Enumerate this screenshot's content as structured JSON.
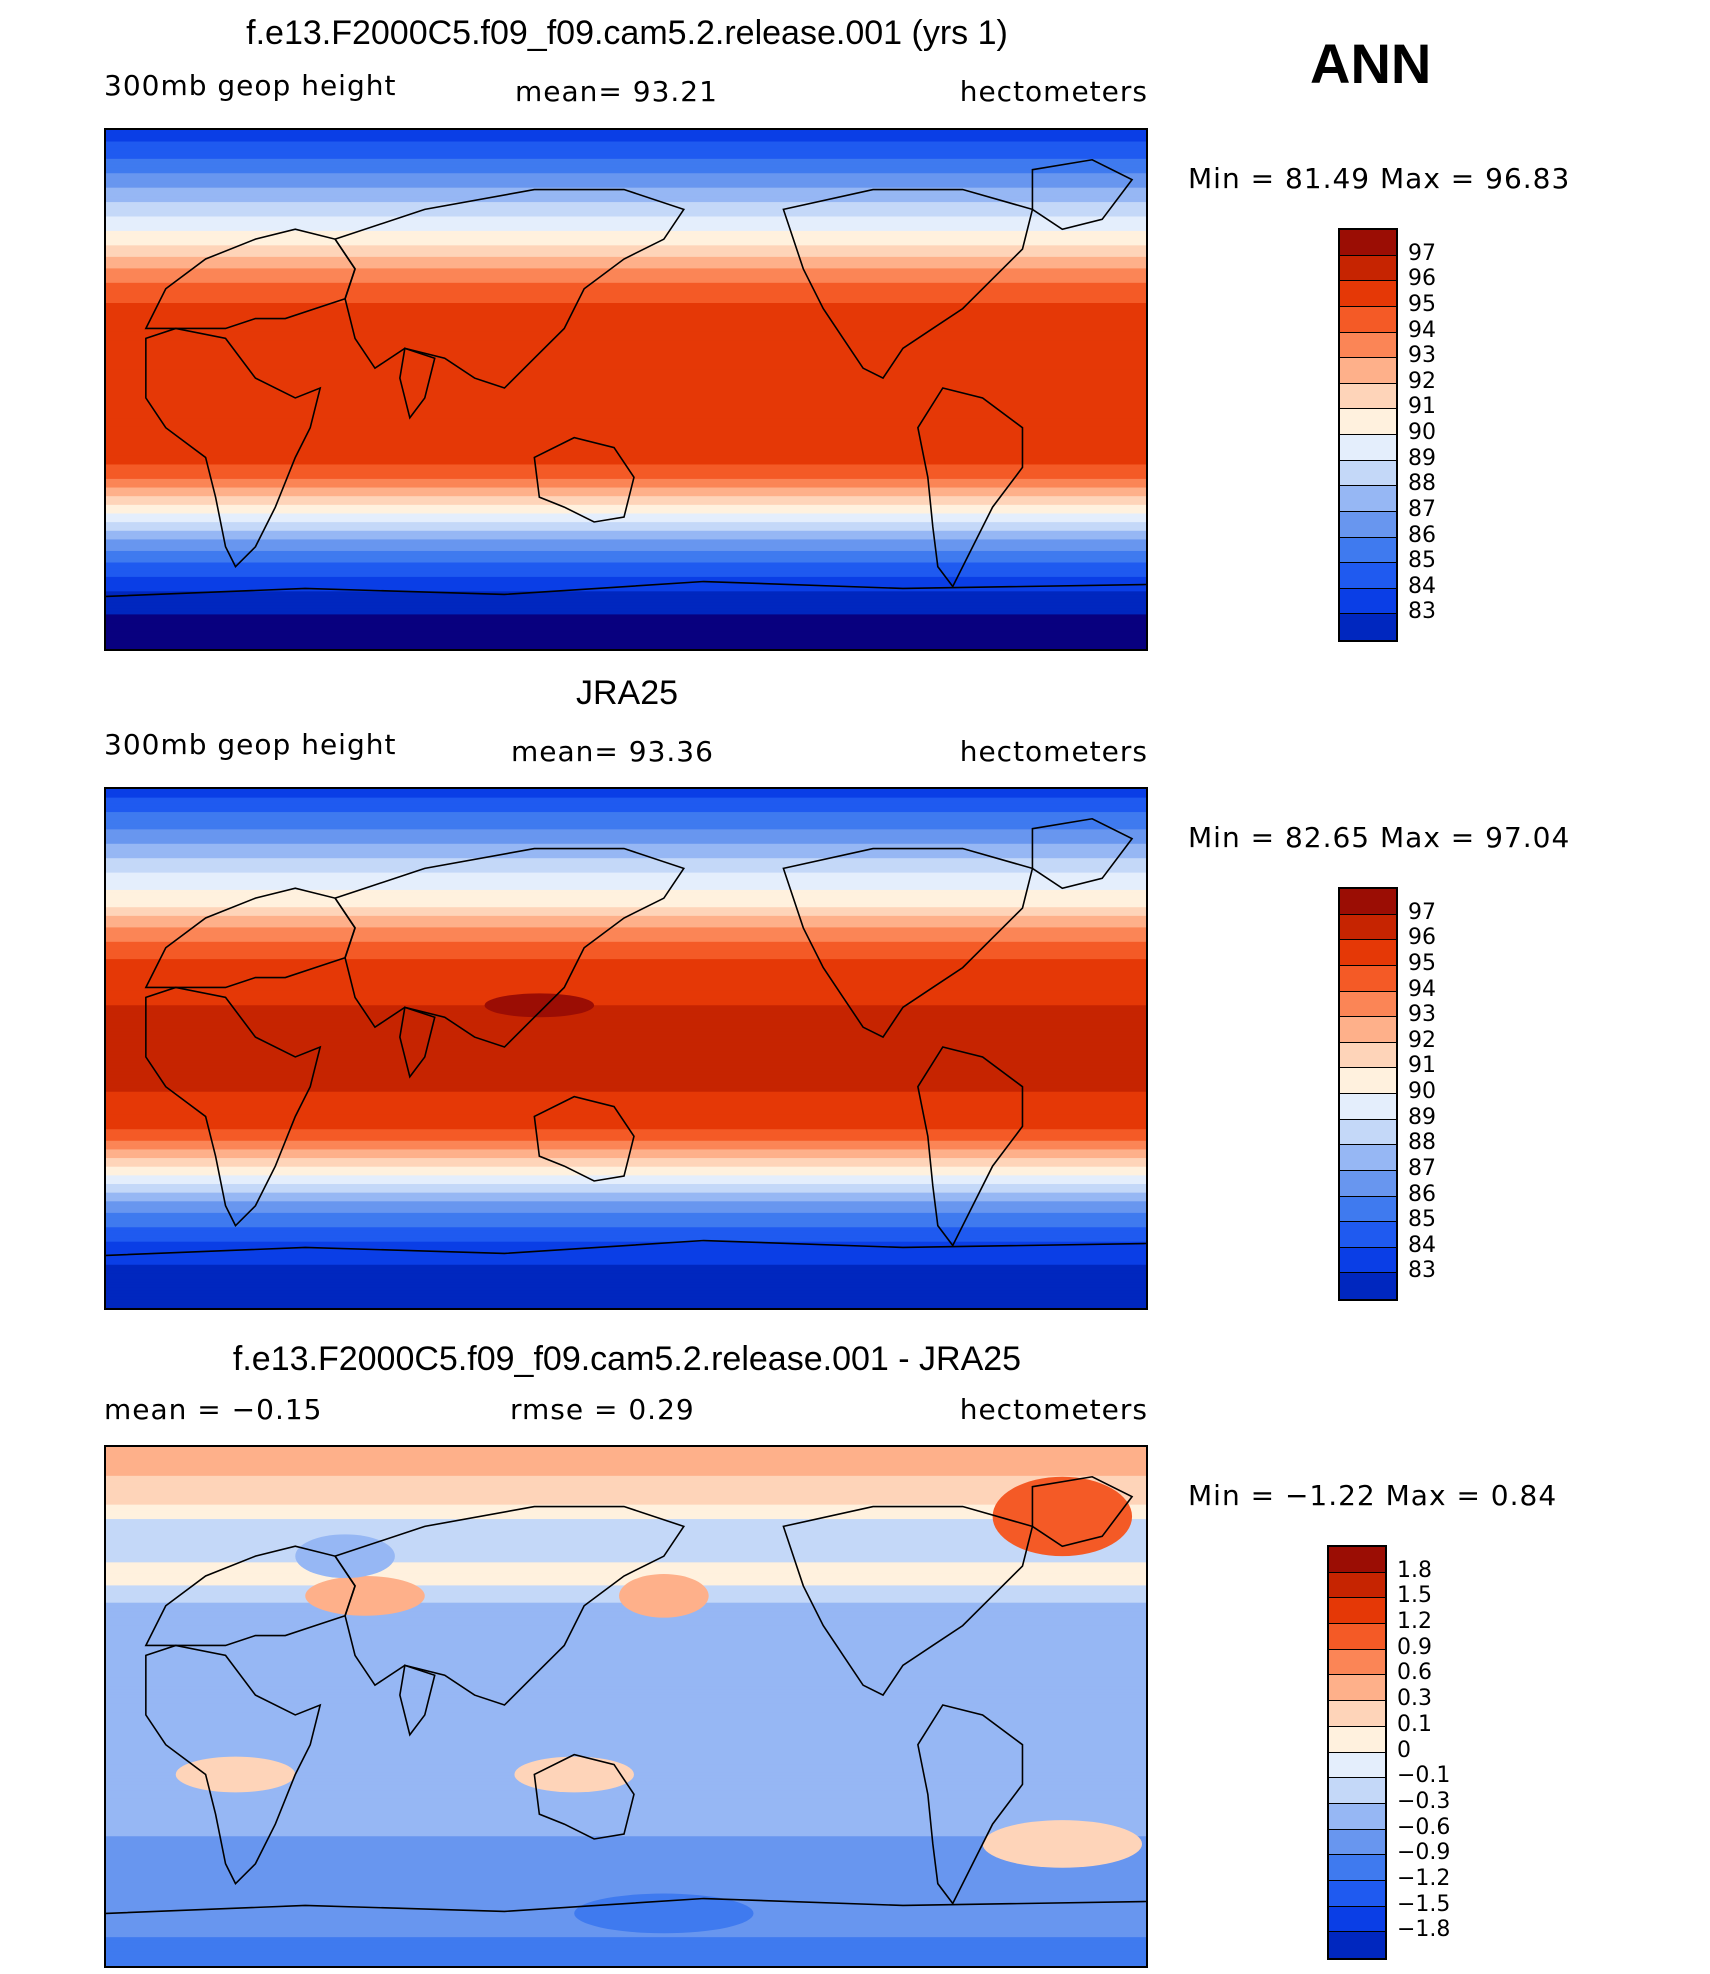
{
  "season": "ANN",
  "palette": {
    "abs": [
      "#08007f",
      "#0027bf",
      "#0a3ee6",
      "#1f5af0",
      "#3f7aef",
      "#6896ef",
      "#96b7f4",
      "#c4d8f8",
      "#e4eefc",
      "#fff1de",
      "#fed4b9",
      "#feb08a",
      "#fb8556",
      "#f45a26",
      "#e53806",
      "#c62401",
      "#9b0d04"
    ],
    "diff": [
      "#08007f",
      "#0027bf",
      "#0a3ee6",
      "#1f5af0",
      "#3f7aef",
      "#6896ef",
      "#96b7f4",
      "#c4d8f8",
      "#e4eefc",
      "#fff1de",
      "#fed4b9",
      "#feb08a",
      "#fb8556",
      "#f45a26",
      "#e53806",
      "#c62401",
      "#9b0d04"
    ]
  },
  "panels": [
    {
      "title": "f.e13.F2000C5.f09_f09.cam5.2.release.001 (yrs 1)",
      "left_label": "300mb  geop  height",
      "center_label": "mean=   93.21",
      "right_label": "hectometers",
      "minmax": "Min  =    81.49  Max  =    96.83",
      "colorbar_labels": [
        "97",
        "96",
        "95",
        "94",
        "93",
        "92",
        "91",
        "90",
        "89",
        "88",
        "87",
        "86",
        "85",
        "84",
        "83"
      ],
      "chart_data": {
        "type": "heatmap",
        "field": "300mb geopotential height",
        "units": "hectometers",
        "mean": 93.21,
        "min": 81.49,
        "max": 96.83,
        "latitude_profile": [
          {
            "lat": 90,
            "value": 83.8
          },
          {
            "lat": 80,
            "value": 85.5
          },
          {
            "lat": 70,
            "value": 87.5
          },
          {
            "lat": 60,
            "value": 89.5
          },
          {
            "lat": 50,
            "value": 91.5
          },
          {
            "lat": 40,
            "value": 94.0
          },
          {
            "lat": 30,
            "value": 95.5
          },
          {
            "lat": 20,
            "value": 96.3
          },
          {
            "lat": 10,
            "value": 96.5
          },
          {
            "lat": 0,
            "value": 96.5
          },
          {
            "lat": -10,
            "value": 96.5
          },
          {
            "lat": -20,
            "value": 96.3
          },
          {
            "lat": -30,
            "value": 95.0
          },
          {
            "lat": -40,
            "value": 91.5
          },
          {
            "lat": -50,
            "value": 88.0
          },
          {
            "lat": -60,
            "value": 85.5
          },
          {
            "lat": -70,
            "value": 83.5
          },
          {
            "lat": -80,
            "value": 82.3
          },
          {
            "lat": -90,
            "value": 81.8
          }
        ]
      }
    },
    {
      "title": "JRA25",
      "left_label": "300mb  geop  height",
      "center_label": "mean=   93.36",
      "right_label": "hectometers",
      "minmax": "Min  =    82.65  Max  =    97.04",
      "colorbar_labels": [
        "97",
        "96",
        "95",
        "94",
        "93",
        "92",
        "91",
        "90",
        "89",
        "88",
        "87",
        "86",
        "85",
        "84",
        "83"
      ],
      "chart_data": {
        "type": "heatmap",
        "field": "300mb geopotential height",
        "units": "hectometers",
        "mean": 93.36,
        "min": 82.65,
        "max": 97.04,
        "latitude_profile": [
          {
            "lat": 90,
            "value": 84.0
          },
          {
            "lat": 80,
            "value": 85.8
          },
          {
            "lat": 70,
            "value": 87.8
          },
          {
            "lat": 60,
            "value": 89.6
          },
          {
            "lat": 50,
            "value": 91.3
          },
          {
            "lat": 40,
            "value": 94.0
          },
          {
            "lat": 30,
            "value": 95.6
          },
          {
            "lat": 20,
            "value": 96.4
          },
          {
            "lat": 10,
            "value": 96.6
          },
          {
            "lat": 0,
            "value": 96.6
          },
          {
            "lat": -10,
            "value": 96.6
          },
          {
            "lat": -20,
            "value": 96.4
          },
          {
            "lat": -30,
            "value": 95.3
          },
          {
            "lat": -40,
            "value": 92.0
          },
          {
            "lat": -50,
            "value": 88.4
          },
          {
            "lat": -60,
            "value": 85.8
          },
          {
            "lat": -70,
            "value": 84.0
          },
          {
            "lat": -80,
            "value": 83.0
          },
          {
            "lat": -90,
            "value": 82.7
          }
        ],
        "annotations": [
          "local maximum > 97 over western tropical Pacific"
        ]
      }
    },
    {
      "title": "f.e13.F2000C5.f09_f09.cam5.2.release.001 - JRA25",
      "left_label": "mean  =    −0.15",
      "center_label": "rmse  =     0.29",
      "right_label": "hectometers",
      "minmax": "Min  =    −1.22  Max  =      0.84",
      "colorbar_labels": [
        "1.8",
        "1.5",
        "1.2",
        "0.9",
        "0.6",
        "0.3",
        "0.1",
        "0",
        "−0.1",
        "−0.3",
        "−0.6",
        "−0.9",
        "−1.2",
        "−1.5",
        "−1.8"
      ],
      "chart_data": {
        "type": "heatmap",
        "field": "difference (model - JRA25)",
        "units": "hectometers",
        "mean": -0.15,
        "rmse": 0.29,
        "min": -1.22,
        "max": 0.84,
        "latitude_profile": [
          {
            "lat": 90,
            "value": 0.5
          },
          {
            "lat": 75,
            "value": 0.2
          },
          {
            "lat": 60,
            "value": -0.1
          },
          {
            "lat": 45,
            "value": 0.05
          },
          {
            "lat": 30,
            "value": -0.2
          },
          {
            "lat": 15,
            "value": -0.2
          },
          {
            "lat": 0,
            "value": -0.2
          },
          {
            "lat": -15,
            "value": -0.2
          },
          {
            "lat": -30,
            "value": -0.15
          },
          {
            "lat": -45,
            "value": -0.3
          },
          {
            "lat": -60,
            "value": -0.4
          },
          {
            "lat": -75,
            "value": -0.5
          },
          {
            "lat": -90,
            "value": -0.8
          }
        ]
      }
    }
  ]
}
